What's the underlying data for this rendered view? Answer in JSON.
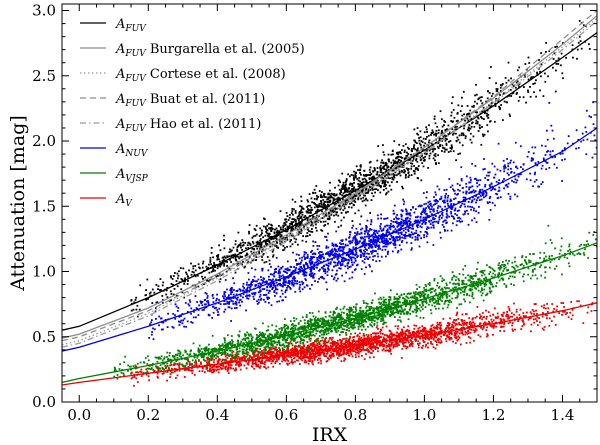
{
  "chart_data": {
    "type": "scatter",
    "title": "",
    "xlabel": "IRX",
    "ylabel": "Attenuation [mag]",
    "xlim": [
      -0.05,
      1.5
    ],
    "ylim": [
      0.0,
      3.05
    ],
    "xticks": [
      0.0,
      0.2,
      0.4,
      0.6,
      0.8,
      1.0,
      1.2,
      1.4
    ],
    "xtick_labels": [
      "0.0",
      "0.2",
      "0.4",
      "0.6",
      "0.8",
      "1.0",
      "1.2",
      "1.4"
    ],
    "yticks": [
      0.0,
      0.5,
      1.0,
      1.5,
      2.0,
      2.5,
      3.0
    ],
    "ytick_labels": [
      "0.0",
      "0.5",
      "1.0",
      "1.5",
      "2.0",
      "2.5",
      "3.0"
    ],
    "grid": false,
    "legend_position": "top-left",
    "series": [
      {
        "id": "afuv",
        "name": "A",
        "sub": "FUV",
        "extra": "",
        "color": "#000000",
        "style": "solid",
        "fit_x": [
          -0.05,
          0.0,
          0.2,
          0.4,
          0.6,
          0.8,
          1.0,
          1.2,
          1.4,
          1.5
        ],
        "fit_y": [
          0.55,
          0.58,
          0.8,
          1.05,
          1.32,
          1.62,
          1.93,
          2.27,
          2.64,
          2.83
        ],
        "scatter": {
          "count": 1800,
          "x_range": [
            0.15,
            1.48
          ],
          "scatter_sd": 0.08
        }
      },
      {
        "id": "burgarella",
        "name": "A",
        "sub": "FUV",
        "extra": " Burgarella et al. (2005)",
        "color": "#8c8c8c",
        "style": "solid",
        "fit_x": [
          -0.05,
          0.0,
          0.2,
          0.4,
          0.6,
          0.8,
          1.0,
          1.2,
          1.4,
          1.5
        ],
        "fit_y": [
          0.49,
          0.52,
          0.72,
          0.98,
          1.28,
          1.6,
          1.95,
          2.33,
          2.74,
          2.96
        ]
      },
      {
        "id": "cortese",
        "name": "A",
        "sub": "FUV",
        "extra": " Cortese et al. (2008)",
        "color": "#9a9a9a",
        "style": "dotted",
        "fit_x": [
          -0.05,
          0.0,
          0.2,
          0.4,
          0.6,
          0.8,
          1.0,
          1.2,
          1.4,
          1.5
        ],
        "fit_y": [
          0.44,
          0.47,
          0.68,
          0.95,
          1.25,
          1.57,
          1.92,
          2.3,
          2.72,
          2.94
        ]
      },
      {
        "id": "buat",
        "name": "A",
        "sub": "FUV",
        "extra": " Buat et al. (2011)",
        "color": "#8c8c8c",
        "style": "dashed",
        "fit_x": [
          -0.05,
          0.0,
          0.2,
          0.4,
          0.6,
          0.8,
          1.0,
          1.2,
          1.4,
          1.5
        ],
        "fit_y": [
          0.47,
          0.5,
          0.7,
          0.96,
          1.26,
          1.59,
          1.95,
          2.34,
          2.78,
          3.0
        ]
      },
      {
        "id": "hao",
        "name": "A",
        "sub": "FUV",
        "extra": " Hao et al. (2011)",
        "color": "#9a9a9a",
        "style": "dashdot",
        "fit_x": [
          -0.05,
          0.0,
          0.2,
          0.4,
          0.6,
          0.8,
          1.0,
          1.2,
          1.4,
          1.5
        ],
        "fit_y": [
          0.42,
          0.45,
          0.66,
          0.93,
          1.23,
          1.56,
          1.91,
          2.29,
          2.7,
          2.92
        ]
      },
      {
        "id": "anuv",
        "name": "A",
        "sub": "NUV",
        "extra": "",
        "color": "#0000ee",
        "style": "solid",
        "fit_x": [
          -0.05,
          0.0,
          0.2,
          0.4,
          0.6,
          0.8,
          1.0,
          1.2,
          1.4,
          1.5
        ],
        "fit_y": [
          0.39,
          0.42,
          0.58,
          0.76,
          0.96,
          1.17,
          1.4,
          1.65,
          1.92,
          2.1
        ],
        "scatter": {
          "count": 1900,
          "x_range": [
            0.2,
            1.5
          ],
          "scatter_sd": 0.08
        }
      },
      {
        "id": "avsp",
        "name": "A",
        "sub": "VJSP",
        "extra": "",
        "color": "#008000",
        "style": "solid",
        "fit_x": [
          -0.05,
          0.0,
          0.2,
          0.4,
          0.6,
          0.8,
          1.0,
          1.2,
          1.4,
          1.5
        ],
        "fit_y": [
          0.15,
          0.18,
          0.28,
          0.39,
          0.51,
          0.64,
          0.79,
          0.95,
          1.12,
          1.22
        ],
        "scatter": {
          "count": 2200,
          "x_range": [
            0.1,
            1.5
          ],
          "scatter_sd": 0.05
        }
      },
      {
        "id": "av",
        "name": "A",
        "sub": "V",
        "extra": "",
        "color": "#ee0000",
        "style": "solid",
        "fit_x": [
          -0.05,
          0.0,
          0.2,
          0.4,
          0.6,
          0.8,
          1.0,
          1.2,
          1.4,
          1.5
        ],
        "fit_y": [
          0.13,
          0.15,
          0.22,
          0.29,
          0.36,
          0.43,
          0.51,
          0.6,
          0.7,
          0.76
        ],
        "scatter": {
          "count": 2200,
          "x_range": [
            0.15,
            1.5
          ],
          "scatter_sd": 0.04
        }
      }
    ]
  }
}
